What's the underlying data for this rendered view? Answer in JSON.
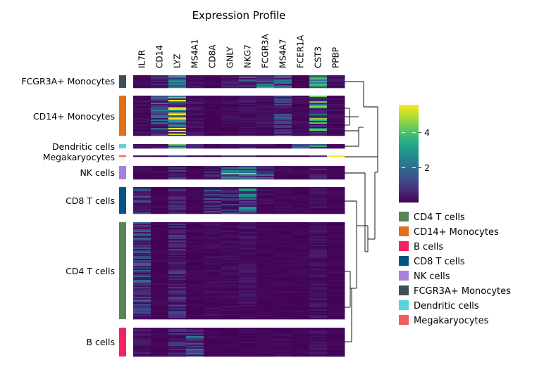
{
  "chart_data": {
    "type": "heatmap",
    "title": "Expression Profile",
    "genes": [
      "IL7R",
      "CD14",
      "LYZ",
      "MS4A1",
      "CD8A",
      "GNLY",
      "NKG7",
      "FCGR3A",
      "MS4A7",
      "FCER1A",
      "CST3",
      "PPBP"
    ],
    "groups": [
      {
        "name": "FCGR3A+ Monocytes",
        "color": "#3d5059",
        "means": [
          0.2,
          0.5,
          2.6,
          0.3,
          0.1,
          0.5,
          1.3,
          2.4,
          2.1,
          0.1,
          3.0,
          0.3
        ]
      },
      {
        "name": "CD14+ Monocytes",
        "color": "#e07019",
        "means": [
          0.2,
          1.5,
          4.3,
          0.3,
          0.1,
          0.2,
          0.3,
          0.3,
          1.0,
          0.2,
          2.9,
          0.2
        ]
      },
      {
        "name": "Dendritic cells",
        "color": "#55d5da",
        "means": [
          0.3,
          0.4,
          4.0,
          0.5,
          0.1,
          0.2,
          0.5,
          0.2,
          0.2,
          1.4,
          3.1,
          0.1
        ]
      },
      {
        "name": "Megakaryocytes",
        "color": "#f25c5c",
        "means": [
          0.2,
          0.2,
          1.0,
          0.2,
          0.1,
          0.5,
          1.2,
          0.3,
          0.2,
          0.1,
          1.0,
          4.5
        ]
      },
      {
        "name": "NK cells",
        "color": "#a67fe0",
        "means": [
          0.2,
          0.1,
          0.9,
          0.1,
          0.5,
          3.0,
          3.3,
          1.5,
          0.2,
          0.1,
          0.5,
          0.1
        ]
      },
      {
        "name": "CD8 T cells",
        "color": "#02557f",
        "means": [
          1.1,
          0.1,
          0.6,
          0.1,
          1.0,
          0.8,
          2.0,
          0.2,
          0.2,
          0.1,
          0.3,
          0.1
        ]
      },
      {
        "name": "CD4 T cells",
        "color": "#558659",
        "means": [
          1.2,
          0.1,
          0.8,
          0.1,
          0.2,
          0.2,
          0.3,
          0.1,
          0.1,
          0.1,
          0.3,
          0.1
        ]
      },
      {
        "name": "B cells",
        "color": "#f42260",
        "means": [
          0.3,
          0.1,
          0.7,
          1.6,
          0.1,
          0.1,
          0.2,
          0.1,
          0.2,
          0.1,
          0.3,
          0.1
        ]
      }
    ],
    "colorbar": {
      "ticks": [
        2,
        4
      ]
    },
    "legend": {
      "position": "right",
      "entries": [
        {
          "label": "CD4 T cells",
          "color": "#558659"
        },
        {
          "label": "CD14+ Monocytes",
          "color": "#e07019"
        },
        {
          "label": "B cells",
          "color": "#f42260"
        },
        {
          "label": "CD8 T cells",
          "color": "#02557f"
        },
        {
          "label": "NK cells",
          "color": "#a67fe0"
        },
        {
          "label": "FCGR3A+ Monocytes",
          "color": "#3d5059"
        },
        {
          "label": "Dendritic cells",
          "color": "#55d5da"
        },
        {
          "label": "Megakaryocytes",
          "color": "#f25c5c"
        }
      ]
    },
    "dendrogram": "right"
  }
}
